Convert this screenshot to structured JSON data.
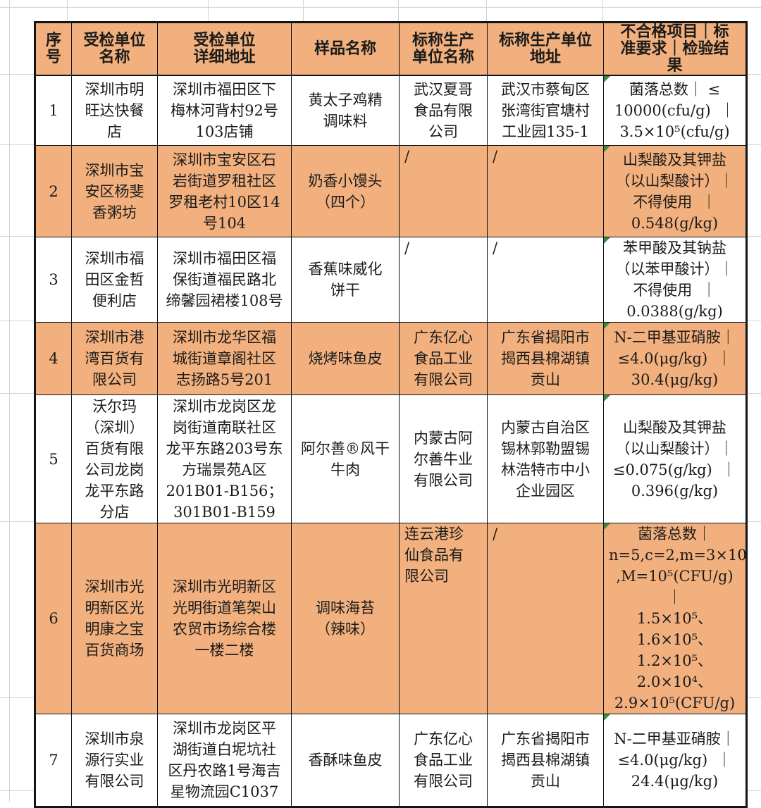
{
  "colors": {
    "row_fill_orange": "#f1b07d",
    "cell_error_indicator_green": "#3d8c40",
    "table_border_black": "#141414",
    "sheet_grid_gray": "#d4d4d4"
  },
  "table": {
    "columns": [
      {
        "key": "index",
        "label": "序号"
      },
      {
        "key": "unit-name",
        "label": "受检单位\n名称"
      },
      {
        "key": "unit-address",
        "label": "受检单位\n详细地址"
      },
      {
        "key": "sample-name",
        "label": "样品名称"
      },
      {
        "key": "producer-name",
        "label": "标称生产\n单位名称"
      },
      {
        "key": "producer-address",
        "label": "标称生产单位\n地址"
      },
      {
        "key": "result",
        "label": "不合格项目｜标\n准要求｜检验结\n果"
      }
    ],
    "rows": [
      {
        "cells": [
          "1",
          "深圳市明\n旺达快餐\n店",
          "深圳市福田区下\n梅林河背村92号\n103店铺",
          "黄太子鸡精\n调味料",
          "武汉夏哥\n食品有限\n公司",
          "武汉市蔡甸区\n张湾街官塘村\n工业园135-1",
          "菌落总数｜ ≤\n10000(cfu/g)  ｜\n3.5×10⁵(cfu/g)"
        ]
      },
      {
        "cells": [
          "2",
          "深圳市宝\n安区杨斐\n香粥坊",
          "深圳市宝安区石\n岩街道罗租社区\n罗租老村10区14\n号104",
          "奶香小馒头\n（四个）",
          {
            "text": "/",
            "cls": "top-left"
          },
          {
            "text": "/",
            "cls": "top-left"
          },
          "山梨酸及其钾盐\n（以山梨酸计）｜\n不得使用  ｜\n0.548(g/kg)"
        ]
      },
      {
        "cells": [
          "3",
          "深圳市福\n田区金哲\n便利店",
          "深圳市福田区福\n保街道福民路北\n缔馨园裙楼108号",
          "香蕉味威化\n饼干",
          {
            "text": "/",
            "cls": "top-left"
          },
          {
            "text": "/",
            "cls": "top-left"
          },
          "苯甲酸及其钠盐\n（以苯甲酸计）｜\n不得使用  ｜\n0.0388(g/kg)"
        ]
      },
      {
        "cells": [
          "4",
          "深圳市港\n湾百货有\n限公司",
          "深圳市龙华区福\n城街道章阁社区\n志扬路5号201",
          "烧烤味鱼皮",
          "广东亿心\n食品工业\n有限公司",
          "广东省揭阳市\n揭西县棉湖镇\n贡山",
          "N-二甲基亚硝胺｜\n≤4.0(μg/kg)  ｜\n30.4(μg/kg)"
        ]
      },
      {
        "cells": [
          "5",
          "沃尔玛\n（深圳）\n百货有限\n公司龙岗\n龙平东路\n分店",
          "深圳市龙岗区龙\n岗街道南联社区\n龙平东路203号东\n方瑞景苑A区\n201B01-B156；\n301B01-B159",
          "阿尔善®风干\n牛肉",
          "内蒙古阿\n尔善牛业\n有限公司",
          "内蒙古自治区\n锡林郭勒盟锡\n林浩特市中小\n企业园区",
          "山梨酸及其钾盐\n（以山梨酸计）｜\n≤0.075(g/kg)  ｜\n0.396(g/kg)"
        ]
      },
      {
        "cells": [
          "6",
          "深圳市光\n明新区光\n明康之宝\n百货商场",
          "深圳市光明新区\n光明街道笔架山\n农贸市场综合楼\n一楼二楼",
          "调味海苔\n（辣味）",
          {
            "text": "连云港珍\n仙食品有\n限公司",
            "cls": "top-left"
          },
          {
            "text": "/",
            "cls": "top-left"
          },
          "菌落总数｜\nn=5,c=2,m=3×10⁴\n,M=10⁵(CFU/g)  ｜\n1.5×10⁵、\n1.6×10⁵、\n1.2×10⁵、\n2.0×10⁴、\n2.9×10⁵(CFU/g)"
        ]
      },
      {
        "cells": [
          "7",
          "深圳市泉\n源行实业\n有限公司",
          "深圳市龙岗区平\n湖街道白坭坑社\n区丹农路1号海吉\n星物流园C1037",
          "香酥味鱼皮",
          "广东亿心\n食品工业\n有限公司",
          "广东省揭阳市\n揭西县棉湖镇\n贡山",
          "N-二甲基亚硝胺｜\n≤4.0(μg/kg)  ｜\n24.4(μg/kg)"
        ]
      }
    ]
  }
}
